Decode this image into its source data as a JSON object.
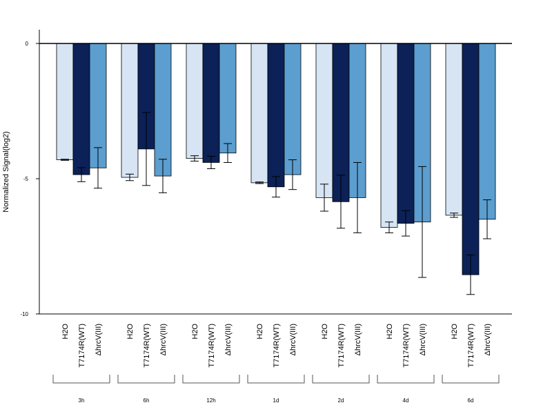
{
  "chart_data": {
    "type": "bar",
    "title": "",
    "xlabel": "",
    "ylabel": "Normalized Signal(log2)",
    "ylim": [
      -10,
      0.5
    ],
    "yticks": [
      0,
      -5,
      -10
    ],
    "yticklabels": [
      "0",
      "-5",
      "-10"
    ],
    "groups": [
      "3h",
      "6h",
      "12h",
      "1d",
      "2d",
      "4d",
      "6d"
    ],
    "series": [
      {
        "name": "H2O",
        "color": "#d6e4f3",
        "values": [
          -4.3,
          -4.95,
          -4.25,
          -5.15,
          -5.7,
          -6.8,
          -6.35
        ],
        "error": [
          0.02,
          0.12,
          0.1,
          0.03,
          0.5,
          0.2,
          0.08
        ]
      },
      {
        "name": "T7174R(WT)",
        "color": "#0b2157",
        "values": [
          -4.85,
          -3.9,
          -4.4,
          -5.3,
          -5.85,
          -6.65,
          -8.55
        ],
        "error": [
          0.26,
          1.35,
          0.23,
          0.38,
          0.98,
          0.47,
          0.73
        ]
      },
      {
        "name": "ΔhrcV(III)",
        "color": "#5b9ecf",
        "values": [
          -4.6,
          -4.9,
          -4.05,
          -4.85,
          -5.7,
          -6.6,
          -6.5
        ],
        "error": [
          0.75,
          0.62,
          0.35,
          0.55,
          1.3,
          2.05,
          0.72
        ]
      }
    ],
    "reference_line": 0,
    "grid": false,
    "legend": "none"
  }
}
